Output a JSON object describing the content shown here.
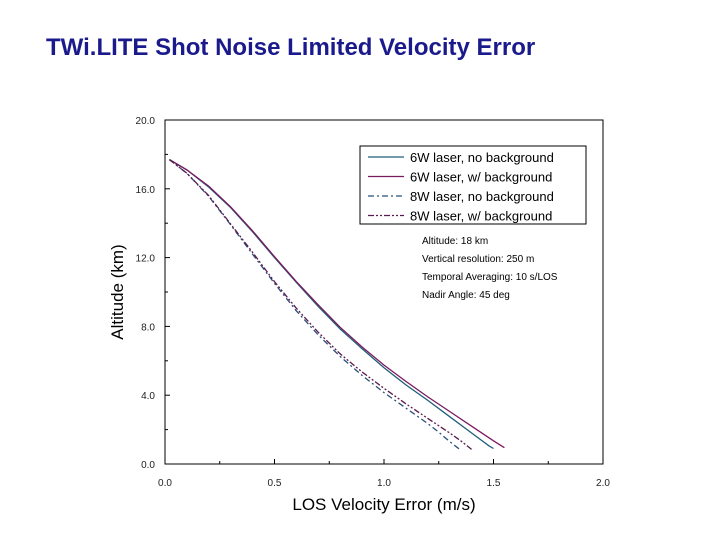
{
  "slide": {
    "title": "TWi.LITE Shot Noise Limited Velocity Error"
  },
  "chart_data": {
    "type": "line",
    "title": "TWi.LITE Shot Noise Limited Velocity Error",
    "xlabel": "LOS Velocity Error (m/s)",
    "ylabel": "Altitude (km)",
    "xlim": [
      0.0,
      2.0
    ],
    "ylim": [
      0.0,
      20.0
    ],
    "x_ticks": [
      "0.0",
      "0.5",
      "1.0",
      "1.5",
      "2.0"
    ],
    "y_ticks": [
      "0.0",
      "4.0",
      "8.0",
      "12.0",
      "16.0",
      "20.0"
    ],
    "grid": false,
    "legend_position": "top-right",
    "series": [
      {
        "name": "6W laser, no background",
        "color": "#1f5f7a",
        "dash": "solid",
        "points": [
          [
            0.02,
            17.7
          ],
          [
            0.1,
            17.1
          ],
          [
            0.2,
            16.1
          ],
          [
            0.3,
            14.9
          ],
          [
            0.4,
            13.5
          ],
          [
            0.5,
            12.0
          ],
          [
            0.6,
            10.55
          ],
          [
            0.7,
            9.15
          ],
          [
            0.8,
            7.85
          ],
          [
            0.9,
            6.7
          ],
          [
            1.0,
            5.6
          ],
          [
            1.1,
            4.6
          ],
          [
            1.2,
            3.7
          ],
          [
            1.3,
            2.75
          ],
          [
            1.4,
            1.8
          ],
          [
            1.48,
            1.05
          ],
          [
            1.5,
            0.9
          ]
        ]
      },
      {
        "name": "6W laser, w/ background",
        "color": "#7b1a5e",
        "dash": "solid",
        "points": [
          [
            0.02,
            17.7
          ],
          [
            0.1,
            17.1
          ],
          [
            0.2,
            16.15
          ],
          [
            0.3,
            14.95
          ],
          [
            0.4,
            13.55
          ],
          [
            0.5,
            12.05
          ],
          [
            0.6,
            10.6
          ],
          [
            0.7,
            9.25
          ],
          [
            0.8,
            7.95
          ],
          [
            0.9,
            6.8
          ],
          [
            1.0,
            5.75
          ],
          [
            1.1,
            4.8
          ],
          [
            1.2,
            3.9
          ],
          [
            1.3,
            3.05
          ],
          [
            1.4,
            2.2
          ],
          [
            1.5,
            1.35
          ],
          [
            1.55,
            0.95
          ]
        ]
      },
      {
        "name": "8W laser, no background",
        "color": "#2a4f7a",
        "dash": "dashdot",
        "points": [
          [
            0.02,
            17.7
          ],
          [
            0.1,
            16.9
          ],
          [
            0.2,
            15.55
          ],
          [
            0.3,
            13.9
          ],
          [
            0.4,
            12.2
          ],
          [
            0.5,
            10.5
          ],
          [
            0.6,
            8.9
          ],
          [
            0.7,
            7.5
          ],
          [
            0.8,
            6.25
          ],
          [
            0.9,
            5.15
          ],
          [
            1.0,
            4.15
          ],
          [
            1.1,
            3.25
          ],
          [
            1.2,
            2.35
          ],
          [
            1.25,
            1.85
          ],
          [
            1.3,
            1.3
          ],
          [
            1.35,
            0.8
          ]
        ]
      },
      {
        "name": "8W laser, w/ background",
        "color": "#5b1a4e",
        "dash": "dashdotdot",
        "points": [
          [
            0.02,
            17.7
          ],
          [
            0.1,
            16.9
          ],
          [
            0.2,
            15.6
          ],
          [
            0.3,
            13.95
          ],
          [
            0.4,
            12.3
          ],
          [
            0.5,
            10.6
          ],
          [
            0.6,
            9.05
          ],
          [
            0.7,
            7.65
          ],
          [
            0.8,
            6.4
          ],
          [
            0.9,
            5.35
          ],
          [
            1.0,
            4.4
          ],
          [
            1.1,
            3.5
          ],
          [
            1.2,
            2.65
          ],
          [
            1.3,
            1.8
          ],
          [
            1.35,
            1.35
          ],
          [
            1.4,
            0.85
          ]
        ]
      }
    ],
    "annotations": [
      "Altitude: 18 km",
      "Vertical resolution: 250 m",
      "Temporal Averaging: 10 s/LOS",
      "Nadir Angle: 45 deg"
    ]
  }
}
